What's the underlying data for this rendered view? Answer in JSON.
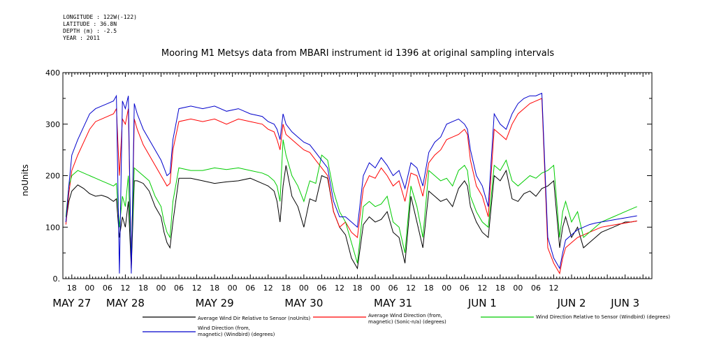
{
  "meta": {
    "longitude": "LONGITUDE : 122W(-122)",
    "latitude": "LATITUDE : 36.8N",
    "depth": "DEPTH (m) : -2.5",
    "year": "YEAR : 2011"
  },
  "chart_data": {
    "type": "line",
    "title": "Mooring M1 Metsys data from MBARI instrument id 1396 at original sampling intervals",
    "ylabel": "noUnits",
    "ylim": [
      0,
      400
    ],
    "yticks": [
      0,
      100,
      200,
      300,
      400
    ],
    "ytick_labels": [
      "0.",
      "100",
      "200",
      "300",
      "400"
    ],
    "xlim_hours": [
      -9,
      189
    ],
    "hour_ticks": [
      "18",
      "00",
      "06",
      "12",
      "18",
      "00",
      "06",
      "12",
      "18",
      "00",
      "06",
      "12",
      "18",
      "00",
      "06",
      "12",
      "18",
      "00",
      "06",
      "12",
      "18",
      "00",
      "06",
      "12",
      "18",
      "00",
      "06",
      "12"
    ],
    "hour_tick_positions": [
      -6,
      0,
      6,
      12,
      18,
      24,
      30,
      36,
      42,
      48,
      54,
      60,
      66,
      72,
      78,
      84,
      90,
      96,
      102,
      108,
      114,
      120,
      126,
      132,
      138,
      144,
      150,
      156
    ],
    "dates": [
      {
        "label": "MAY 27",
        "hour": -6
      },
      {
        "label": "MAY 28",
        "hour": 12
      },
      {
        "label": "MAY 29",
        "hour": 42
      },
      {
        "label": "MAY 30",
        "hour": 72
      },
      {
        "label": "MAY 31",
        "hour": 102
      },
      {
        "label": "JUN  1",
        "hour": 132
      },
      {
        "label": "JUN  2",
        "hour": 162
      },
      {
        "label": "JUN  3",
        "hour": 180
      }
    ],
    "x_axis_note": "x values are hours after 2011-05-27 00:00",
    "series": [
      {
        "name": "Average Wind Dir Relative to Sensor (noUnits)",
        "color": "#000000",
        "x": [
          -8,
          -7,
          -6,
          -4,
          -2,
          0,
          2,
          4,
          6,
          8,
          9,
          10,
          11,
          12,
          13,
          14,
          15,
          16,
          18,
          20,
          22,
          24,
          25,
          26,
          27,
          28,
          30,
          34,
          38,
          42,
          46,
          50,
          54,
          58,
          60,
          62,
          63,
          64,
          65,
          66,
          68,
          70,
          72,
          74,
          76,
          78,
          80,
          82,
          84,
          86,
          88,
          90,
          92,
          94,
          96,
          98,
          100,
          102,
          104,
          106,
          108,
          110,
          112,
          114,
          116,
          118,
          120,
          122,
          124,
          126,
          127,
          128,
          130,
          132,
          134,
          136,
          138,
          140,
          142,
          144,
          146,
          148,
          150,
          152,
          154,
          156,
          158,
          159,
          160,
          162,
          164,
          166,
          168,
          170,
          172,
          174,
          176,
          178,
          180,
          182,
          184
        ],
        "y": [
          110,
          150,
          170,
          182,
          175,
          165,
          160,
          162,
          158,
          150,
          155,
          80,
          120,
          100,
          150,
          20,
          190,
          190,
          185,
          170,
          140,
          120,
          90,
          70,
          60,
          110,
          195,
          195,
          190,
          185,
          188,
          190,
          195,
          185,
          180,
          170,
          150,
          110,
          180,
          220,
          160,
          140,
          100,
          155,
          150,
          200,
          195,
          130,
          100,
          85,
          40,
          20,
          105,
          120,
          110,
          115,
          130,
          90,
          80,
          30,
          160,
          110,
          60,
          170,
          160,
          150,
          155,
          140,
          175,
          190,
          180,
          140,
          110,
          90,
          80,
          200,
          190,
          210,
          155,
          150,
          165,
          170,
          160,
          175,
          180,
          190,
          60,
          100,
          120,
          80,
          100,
          60,
          70,
          80,
          90,
          95,
          100,
          105,
          110,
          110,
          112
        ]
      },
      {
        "name": "Average Wind Direction (from, magnetic) (Sonic-n/a) (degrees)",
        "color": "#ff0000",
        "x": [
          -8,
          -7,
          -6,
          -4,
          -2,
          0,
          2,
          4,
          6,
          8,
          9,
          10,
          11,
          12,
          13,
          14,
          15,
          16,
          18,
          20,
          22,
          24,
          25,
          26,
          27,
          28,
          30,
          34,
          38,
          42,
          46,
          50,
          54,
          58,
          60,
          62,
          63,
          64,
          65,
          66,
          68,
          70,
          72,
          74,
          76,
          78,
          80,
          82,
          84,
          86,
          88,
          90,
          92,
          94,
          96,
          98,
          100,
          102,
          104,
          106,
          108,
          110,
          112,
          114,
          116,
          118,
          120,
          122,
          124,
          126,
          127,
          128,
          130,
          132,
          134,
          136,
          138,
          140,
          142,
          144,
          146,
          148,
          150,
          152,
          154,
          156,
          158,
          159,
          160,
          162,
          164,
          166,
          168,
          170,
          172,
          174,
          176,
          178,
          180,
          182,
          184
        ],
        "y": [
          105,
          165,
          210,
          240,
          265,
          290,
          305,
          310,
          315,
          320,
          330,
          200,
          310,
          300,
          330,
          20,
          310,
          290,
          260,
          240,
          220,
          200,
          190,
          180,
          185,
          250,
          305,
          310,
          305,
          310,
          300,
          310,
          305,
          300,
          290,
          285,
          270,
          250,
          300,
          280,
          270,
          260,
          250,
          245,
          230,
          215,
          200,
          130,
          100,
          110,
          90,
          80,
          175,
          200,
          195,
          215,
          200,
          180,
          190,
          150,
          205,
          200,
          160,
          225,
          240,
          250,
          270,
          275,
          280,
          290,
          280,
          230,
          180,
          160,
          120,
          290,
          280,
          270,
          300,
          320,
          330,
          340,
          345,
          350,
          60,
          30,
          10,
          40,
          60,
          70,
          80,
          85,
          90,
          95,
          100,
          102,
          104,
          106,
          108,
          110,
          112
        ]
      },
      {
        "name": "Wind Direction Relative to Sensor (Windbird) (degrees)",
        "color": "#00cc00",
        "x": [
          -8,
          -7,
          -6,
          -4,
          -2,
          0,
          2,
          4,
          6,
          8,
          9,
          10,
          11,
          12,
          13,
          14,
          15,
          16,
          18,
          20,
          22,
          24,
          25,
          26,
          27,
          28,
          30,
          34,
          38,
          42,
          46,
          50,
          54,
          58,
          60,
          62,
          63,
          64,
          65,
          66,
          68,
          70,
          72,
          74,
          76,
          78,
          80,
          82,
          84,
          86,
          88,
          90,
          92,
          94,
          96,
          98,
          100,
          102,
          104,
          106,
          108,
          110,
          112,
          114,
          116,
          118,
          120,
          122,
          124,
          126,
          127,
          128,
          130,
          132,
          134,
          136,
          138,
          140,
          142,
          144,
          146,
          148,
          150,
          152,
          154,
          156,
          158,
          159,
          160,
          162,
          164,
          166,
          168,
          170,
          172,
          174,
          176,
          178,
          180,
          182,
          184
        ],
        "y": [
          120,
          180,
          200,
          210,
          205,
          200,
          195,
          190,
          185,
          180,
          185,
          100,
          160,
          140,
          200,
          40,
          215,
          210,
          200,
          190,
          160,
          140,
          110,
          90,
          80,
          150,
          215,
          210,
          210,
          215,
          212,
          215,
          210,
          205,
          200,
          190,
          180,
          150,
          270,
          240,
          200,
          180,
          150,
          190,
          185,
          240,
          230,
          170,
          130,
          110,
          70,
          30,
          140,
          150,
          140,
          145,
          160,
          110,
          100,
          50,
          180,
          140,
          80,
          210,
          200,
          190,
          195,
          180,
          210,
          220,
          210,
          160,
          130,
          110,
          100,
          220,
          210,
          230,
          190,
          180,
          190,
          200,
          195,
          205,
          210,
          220,
          80,
          130,
          150,
          110,
          130,
          80,
          90,
          100,
          110,
          115,
          120,
          125,
          130,
          135,
          140
        ]
      },
      {
        "name": "Wind Direction (from, magnetic) (Windbird) (degrees)",
        "color": "#0000cc",
        "x": [
          -8,
          -7,
          -6,
          -4,
          -2,
          0,
          2,
          4,
          6,
          8,
          9,
          10,
          11,
          12,
          13,
          14,
          15,
          16,
          18,
          20,
          22,
          24,
          25,
          26,
          27,
          28,
          30,
          34,
          38,
          42,
          46,
          50,
          54,
          58,
          60,
          62,
          63,
          64,
          65,
          66,
          68,
          70,
          72,
          74,
          76,
          78,
          80,
          82,
          84,
          86,
          88,
          90,
          92,
          94,
          96,
          98,
          100,
          102,
          104,
          106,
          108,
          110,
          112,
          114,
          116,
          118,
          120,
          122,
          124,
          126,
          127,
          128,
          130,
          132,
          134,
          136,
          138,
          140,
          142,
          144,
          146,
          148,
          150,
          152,
          154,
          156,
          158,
          159,
          160,
          162,
          164,
          166,
          168,
          170,
          172,
          174,
          176,
          178,
          180,
          182,
          184
        ],
        "y": [
          110,
          180,
          240,
          270,
          295,
          320,
          330,
          335,
          340,
          345,
          355,
          10,
          345,
          330,
          355,
          10,
          340,
          320,
          290,
          270,
          250,
          230,
          215,
          200,
          205,
          270,
          330,
          335,
          330,
          335,
          325,
          330,
          320,
          315,
          305,
          300,
          290,
          270,
          320,
          300,
          285,
          275,
          265,
          260,
          245,
          230,
          215,
          150,
          120,
          120,
          110,
          100,
          200,
          225,
          215,
          235,
          220,
          200,
          210,
          175,
          225,
          215,
          180,
          245,
          265,
          275,
          300,
          305,
          310,
          300,
          290,
          250,
          200,
          180,
          140,
          320,
          300,
          290,
          320,
          340,
          350,
          355,
          355,
          360,
          80,
          40,
          20,
          50,
          75,
          85,
          95,
          100,
          105,
          108,
          110,
          112,
          114,
          116,
          118,
          120,
          122
        ]
      }
    ],
    "legend": [
      {
        "label_lines": [
          "Average Wind Dir Relative to Sensor (noUnits)"
        ],
        "color": "#000000"
      },
      {
        "label_lines": [
          "Average Wind Direction (from,",
          "magnetic) (Sonic-n/a) (degrees)"
        ],
        "color": "#ff0000"
      },
      {
        "label_lines": [
          "Wind Direction Relative to Sensor (Windbird) (degrees)"
        ],
        "color": "#00cc00"
      },
      {
        "label_lines": [
          "Wind Direction (from,",
          "magnetic) (Windbird) (degrees)"
        ],
        "color": "#0000cc"
      }
    ]
  }
}
